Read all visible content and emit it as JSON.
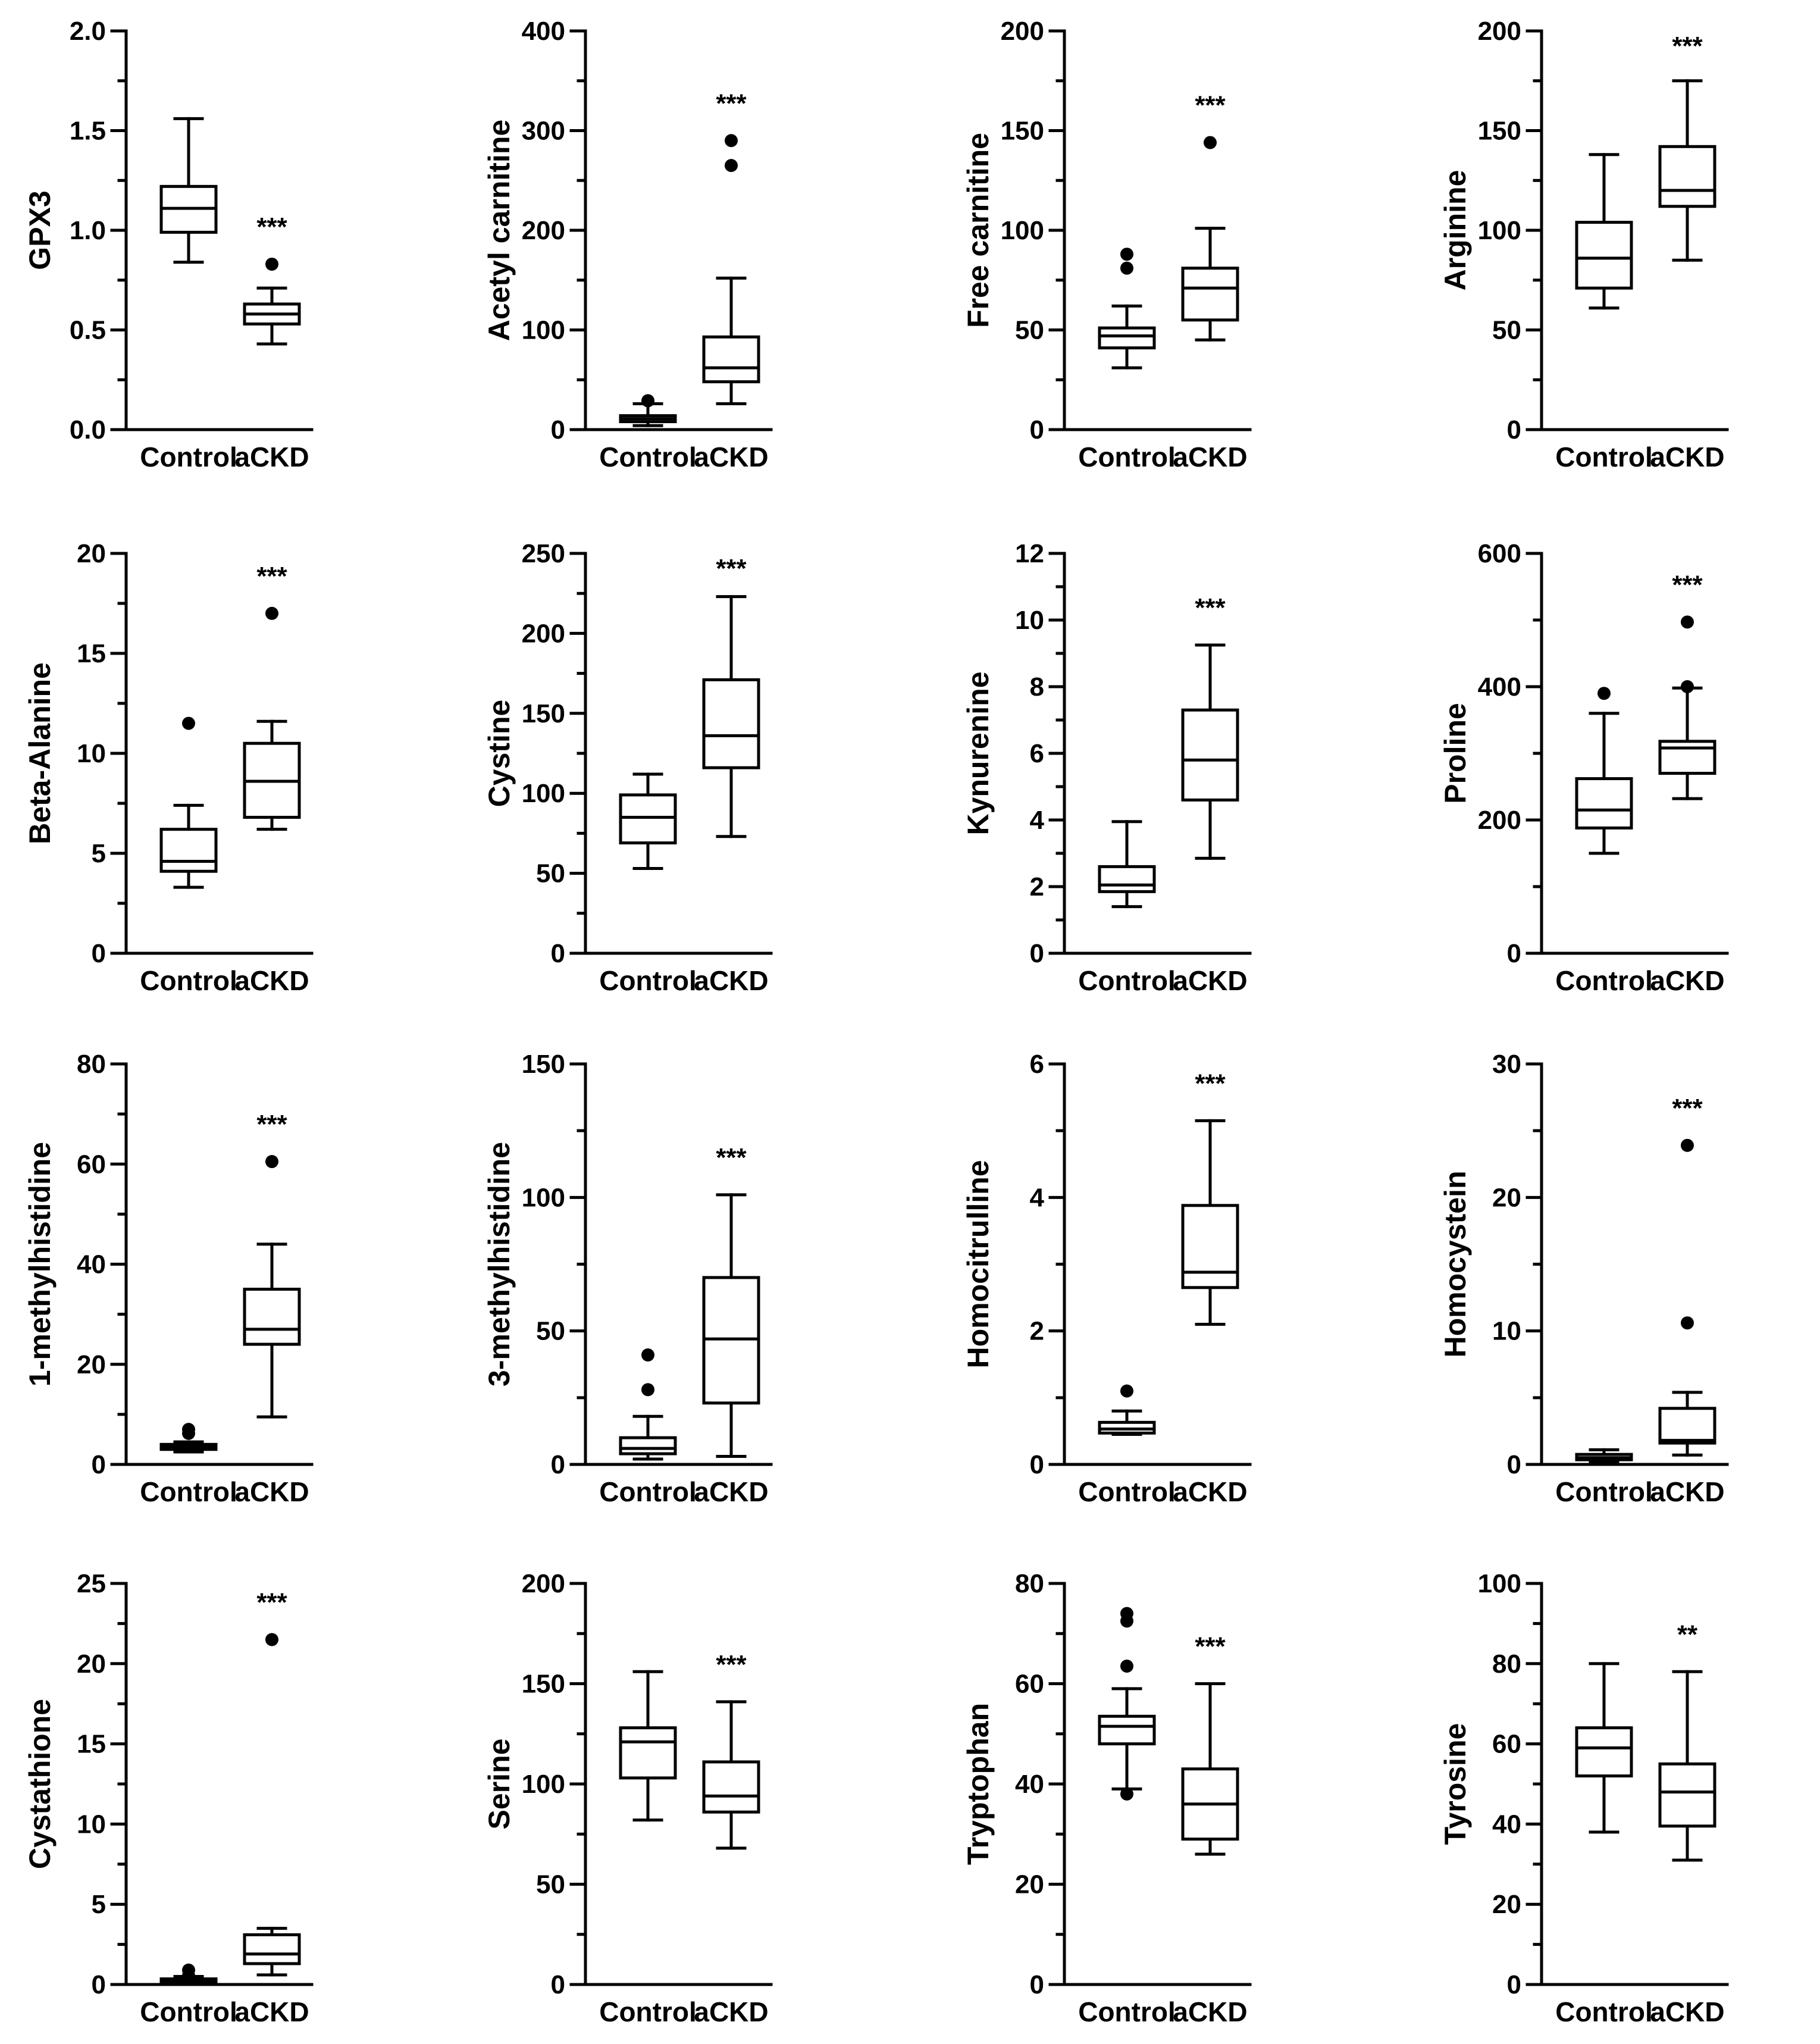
{
  "figure": {
    "background": "#ffffff",
    "line_color": "#000000"
  },
  "chart_data": [
    {
      "type": "box",
      "ylabel": "GPX3",
      "ylim": [
        0,
        2.0
      ],
      "yticks": [
        "0.0",
        "0.5",
        "1.0",
        "1.5",
        "2.0"
      ],
      "categories": [
        "Control",
        "aCKD"
      ],
      "significance": "***",
      "boxes": [
        {
          "name": "Control",
          "min": 0.84,
          "q1": 0.99,
          "median": 1.11,
          "q3": 1.22,
          "max": 1.56,
          "outliers": []
        },
        {
          "name": "aCKD",
          "min": 0.43,
          "q1": 0.53,
          "median": 0.58,
          "q3": 0.63,
          "max": 0.71,
          "outliers": [
            0.83
          ]
        }
      ]
    },
    {
      "type": "box",
      "ylabel": "Acetyl carnitine",
      "ylim": [
        0,
        400
      ],
      "yticks": [
        "0",
        "100",
        "200",
        "300",
        "400"
      ],
      "categories": [
        "Control",
        "aCKD"
      ],
      "significance": "***",
      "boxes": [
        {
          "name": "Control",
          "min": 4,
          "q1": 8,
          "median": 11,
          "q3": 14,
          "max": 26,
          "outliers": [
            29
          ]
        },
        {
          "name": "aCKD",
          "min": 26,
          "q1": 48,
          "median": 62,
          "q3": 93,
          "max": 152,
          "outliers": [
            265,
            290
          ]
        }
      ]
    },
    {
      "type": "box",
      "ylabel": "Free carnitine",
      "ylim": [
        0,
        200
      ],
      "yticks": [
        "0",
        "50",
        "100",
        "150",
        "200"
      ],
      "categories": [
        "Control",
        "aCKD"
      ],
      "significance": "***",
      "boxes": [
        {
          "name": "Control",
          "min": 31,
          "q1": 41,
          "median": 47,
          "q3": 51,
          "max": 62,
          "outliers": [
            81,
            88
          ]
        },
        {
          "name": "aCKD",
          "min": 45,
          "q1": 55,
          "median": 71,
          "q3": 81,
          "max": 101,
          "outliers": [
            144
          ]
        }
      ]
    },
    {
      "type": "box",
      "ylabel": "Arginine",
      "ylim": [
        0,
        200
      ],
      "yticks": [
        "0",
        "50",
        "100",
        "150",
        "200"
      ],
      "categories": [
        "Control",
        "aCKD"
      ],
      "significance": "***",
      "boxes": [
        {
          "name": "Control",
          "min": 61,
          "q1": 71,
          "median": 86,
          "q3": 104,
          "max": 138,
          "outliers": []
        },
        {
          "name": "aCKD",
          "min": 85,
          "q1": 112,
          "median": 120,
          "q3": 142,
          "max": 175,
          "outliers": []
        }
      ]
    },
    {
      "type": "box",
      "ylabel": "Beta-Alanine",
      "ylim": [
        0,
        20
      ],
      "yticks": [
        "0",
        "5",
        "10",
        "15",
        "20"
      ],
      "categories": [
        "Control",
        "aCKD"
      ],
      "significance": "***",
      "boxes": [
        {
          "name": "Control",
          "min": 3.3,
          "q1": 4.1,
          "median": 4.6,
          "q3": 6.2,
          "max": 7.4,
          "outliers": [
            11.5
          ]
        },
        {
          "name": "aCKD",
          "min": 6.2,
          "q1": 6.8,
          "median": 8.6,
          "q3": 10.5,
          "max": 11.6,
          "outliers": [
            17.0
          ]
        }
      ]
    },
    {
      "type": "box",
      "ylabel": "Cystine",
      "ylim": [
        0,
        250
      ],
      "yticks": [
        "0",
        "50",
        "100",
        "150",
        "200",
        "250"
      ],
      "categories": [
        "Control",
        "aCKD"
      ],
      "significance": "***",
      "boxes": [
        {
          "name": "Control",
          "min": 53,
          "q1": 69,
          "median": 85,
          "q3": 99,
          "max": 112,
          "outliers": []
        },
        {
          "name": "aCKD",
          "min": 73,
          "q1": 116,
          "median": 136,
          "q3": 171,
          "max": 223,
          "outliers": []
        }
      ]
    },
    {
      "type": "box",
      "ylabel": "Kynurenine",
      "ylim": [
        0,
        12
      ],
      "yticks": [
        "0",
        "2",
        "4",
        "6",
        "8",
        "10",
        "12"
      ],
      "categories": [
        "Control",
        "aCKD"
      ],
      "significance": "***",
      "boxes": [
        {
          "name": "Control",
          "min": 1.4,
          "q1": 1.85,
          "median": 2.05,
          "q3": 2.6,
          "max": 3.95,
          "outliers": []
        },
        {
          "name": "aCKD",
          "min": 2.85,
          "q1": 4.6,
          "median": 5.8,
          "q3": 7.3,
          "max": 9.25,
          "outliers": []
        }
      ]
    },
    {
      "type": "box",
      "ylabel": "Proline",
      "ylim": [
        0,
        600
      ],
      "yticks": [
        "0",
        "200",
        "400",
        "600"
      ],
      "categories": [
        "Control",
        "aCKD"
      ],
      "significance": "***",
      "boxes": [
        {
          "name": "Control",
          "min": 150,
          "q1": 188,
          "median": 215,
          "q3": 262,
          "max": 360,
          "outliers": [
            390
          ]
        },
        {
          "name": "aCKD",
          "min": 232,
          "q1": 270,
          "median": 308,
          "q3": 318,
          "max": 398,
          "outliers": [
            400,
            497
          ]
        }
      ]
    },
    {
      "type": "box",
      "ylabel": "1-methylhistidine",
      "ylim": [
        0,
        80
      ],
      "yticks": [
        "0",
        "20",
        "40",
        "60",
        "80"
      ],
      "categories": [
        "Control",
        "aCKD"
      ],
      "significance": "***",
      "boxes": [
        {
          "name": "Control",
          "min": 2.5,
          "q1": 3.0,
          "median": 3.5,
          "q3": 4.0,
          "max": 4.5,
          "outliers": [
            6.2,
            7.0
          ]
        },
        {
          "name": "aCKD",
          "min": 9.5,
          "q1": 24,
          "median": 27,
          "q3": 35,
          "max": 44,
          "outliers": [
            60.5
          ]
        }
      ]
    },
    {
      "type": "box",
      "ylabel": "3-methylhistidine",
      "ylim": [
        0,
        150
      ],
      "yticks": [
        "0",
        "50",
        "100",
        "150"
      ],
      "categories": [
        "Control",
        "aCKD"
      ],
      "significance": "***",
      "boxes": [
        {
          "name": "Control",
          "min": 2,
          "q1": 4,
          "median": 6,
          "q3": 10,
          "max": 18,
          "outliers": [
            28,
            41
          ]
        },
        {
          "name": "aCKD",
          "min": 3,
          "q1": 23,
          "median": 47,
          "q3": 70,
          "max": 101,
          "outliers": []
        }
      ]
    },
    {
      "type": "box",
      "ylabel": "Homocitrulline",
      "ylim": [
        0,
        6
      ],
      "yticks": [
        "0",
        "2",
        "4",
        "6"
      ],
      "categories": [
        "Control",
        "aCKD"
      ],
      "significance": "***",
      "boxes": [
        {
          "name": "Control",
          "min": 0.45,
          "q1": 0.47,
          "median": 0.53,
          "q3": 0.63,
          "max": 0.8,
          "outliers": [
            1.1
          ]
        },
        {
          "name": "aCKD",
          "min": 2.1,
          "q1": 2.65,
          "median": 2.88,
          "q3": 3.88,
          "max": 5.15,
          "outliers": []
        }
      ]
    },
    {
      "type": "box",
      "ylabel": "Homocystein",
      "ylim": [
        0,
        30
      ],
      "yticks": [
        "0",
        "10",
        "20",
        "30"
      ],
      "categories": [
        "Control",
        "aCKD"
      ],
      "significance": "***",
      "boxes": [
        {
          "name": "Control",
          "min": 0.2,
          "q1": 0.35,
          "median": 0.5,
          "q3": 0.75,
          "max": 1.1,
          "outliers": []
        },
        {
          "name": "aCKD",
          "min": 0.7,
          "q1": 1.6,
          "median": 1.8,
          "q3": 4.2,
          "max": 5.4,
          "outliers": [
            10.6,
            23.9
          ]
        }
      ]
    },
    {
      "type": "box",
      "ylabel": "Cystathione",
      "ylim": [
        0,
        25
      ],
      "yticks": [
        "0",
        "5",
        "10",
        "15",
        "20",
        "25"
      ],
      "categories": [
        "Control",
        "aCKD"
      ],
      "significance": "***",
      "boxes": [
        {
          "name": "Control",
          "min": 0.1,
          "q1": 0.15,
          "median": 0.25,
          "q3": 0.35,
          "max": 0.5,
          "outliers": [
            0.55,
            0.9
          ]
        },
        {
          "name": "aCKD",
          "min": 0.6,
          "q1": 1.3,
          "median": 1.9,
          "q3": 3.1,
          "max": 3.5,
          "outliers": [
            21.5
          ]
        }
      ]
    },
    {
      "type": "box",
      "ylabel": "Serine",
      "ylim": [
        0,
        200
      ],
      "yticks": [
        "0",
        "50",
        "100",
        "150",
        "200"
      ],
      "categories": [
        "Control",
        "aCKD"
      ],
      "significance": "***",
      "boxes": [
        {
          "name": "Control",
          "min": 82,
          "q1": 103,
          "median": 121,
          "q3": 128,
          "max": 156,
          "outliers": []
        },
        {
          "name": "aCKD",
          "min": 68,
          "q1": 86,
          "median": 94,
          "q3": 111,
          "max": 141,
          "outliers": []
        }
      ]
    },
    {
      "type": "box",
      "ylabel": "Tryptophan",
      "ylim": [
        0,
        80
      ],
      "yticks": [
        "0",
        "20",
        "40",
        "60",
        "80"
      ],
      "categories": [
        "Control",
        "aCKD"
      ],
      "significance": "***",
      "boxes": [
        {
          "name": "Control",
          "min": 39,
          "q1": 48,
          "median": 51.5,
          "q3": 53.5,
          "max": 59,
          "outliers": [
            38,
            63.5,
            72.5,
            74
          ]
        },
        {
          "name": "aCKD",
          "min": 26,
          "q1": 29,
          "median": 36,
          "q3": 43,
          "max": 60,
          "outliers": []
        }
      ]
    },
    {
      "type": "box",
      "ylabel": "Tyrosine",
      "ylim": [
        0,
        100
      ],
      "yticks": [
        "0",
        "20",
        "40",
        "60",
        "80",
        "100"
      ],
      "categories": [
        "Control",
        "aCKD"
      ],
      "significance": "**",
      "boxes": [
        {
          "name": "Control",
          "min": 38,
          "q1": 52,
          "median": 59,
          "q3": 64,
          "max": 80,
          "outliers": []
        },
        {
          "name": "aCKD",
          "min": 31,
          "q1": 39.5,
          "median": 48,
          "q3": 55,
          "max": 78,
          "outliers": []
        }
      ]
    }
  ]
}
